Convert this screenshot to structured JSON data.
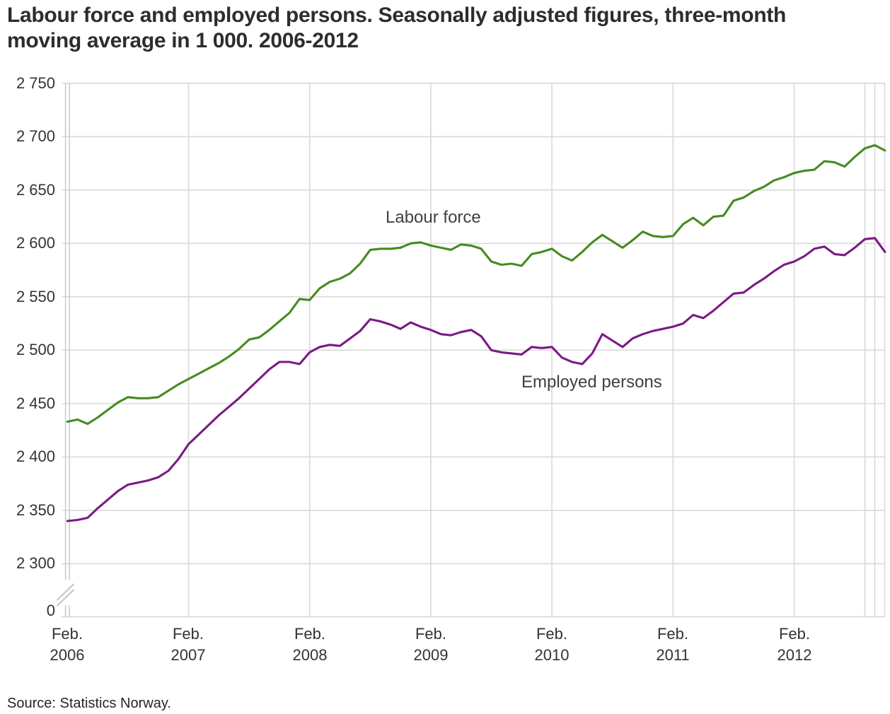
{
  "title": "Labour force and employed persons. Seasonally adjusted figures, three-month moving average in 1 000. 2006-2012",
  "source": "Source: Statistics Norway.",
  "colors": {
    "labour_force_line": "#458b1f",
    "employed_line": "#7a1a85",
    "gridline": "#d9d9d9",
    "axis": "#cbcbcb"
  },
  "chart_data": {
    "type": "line",
    "title": "Labour force and employed persons. Seasonally adjusted figures, three-month moving average in 1 000. 2006-2012",
    "xlabel": "",
    "ylabel": "",
    "grid": true,
    "legend_position": "inline-labels",
    "y_axis": {
      "broken_at_zero": true,
      "range_shown": [
        2300,
        2750
      ],
      "ticks": [
        {
          "value": 2750,
          "label": "2 750"
        },
        {
          "value": 2700,
          "label": "2 700"
        },
        {
          "value": 2650,
          "label": "2 650"
        },
        {
          "value": 2600,
          "label": "2 600"
        },
        {
          "value": 2550,
          "label": "2 550"
        },
        {
          "value": 2500,
          "label": "2 500"
        },
        {
          "value": 2450,
          "label": "2 450"
        },
        {
          "value": 2400,
          "label": "2 400"
        },
        {
          "value": 2350,
          "label": "2 350"
        },
        {
          "value": 2300,
          "label": "2 300"
        },
        {
          "value": 0,
          "label": "0"
        }
      ]
    },
    "x_axis": {
      "ticks": [
        {
          "month_index": 0,
          "line1": "Feb.",
          "line2": "2006"
        },
        {
          "month_index": 12,
          "line1": "Feb.",
          "line2": "2007"
        },
        {
          "month_index": 24,
          "line1": "Feb.",
          "line2": "2008"
        },
        {
          "month_index": 36,
          "line1": "Feb.",
          "line2": "2009"
        },
        {
          "month_index": 48,
          "line1": "Feb.",
          "line2": "2010"
        },
        {
          "month_index": 60,
          "line1": "Feb.",
          "line2": "2011"
        },
        {
          "month_index": 72,
          "line1": "Feb.",
          "line2": "2012"
        }
      ]
    },
    "months": [
      "2006-02",
      "2006-03",
      "2006-04",
      "2006-05",
      "2006-06",
      "2006-07",
      "2006-08",
      "2006-09",
      "2006-10",
      "2006-11",
      "2006-12",
      "2007-01",
      "2007-02",
      "2007-03",
      "2007-04",
      "2007-05",
      "2007-06",
      "2007-07",
      "2007-08",
      "2007-09",
      "2007-10",
      "2007-11",
      "2007-12",
      "2008-01",
      "2008-02",
      "2008-03",
      "2008-04",
      "2008-05",
      "2008-06",
      "2008-07",
      "2008-08",
      "2008-09",
      "2008-10",
      "2008-11",
      "2008-12",
      "2009-01",
      "2009-02",
      "2009-03",
      "2009-04",
      "2009-05",
      "2009-06",
      "2009-07",
      "2009-08",
      "2009-09",
      "2009-10",
      "2009-11",
      "2009-12",
      "2010-01",
      "2010-02",
      "2010-03",
      "2010-04",
      "2010-05",
      "2010-06",
      "2010-07",
      "2010-08",
      "2010-09",
      "2010-10",
      "2010-11",
      "2010-12",
      "2011-01",
      "2011-02",
      "2011-03",
      "2011-04",
      "2011-05",
      "2011-06",
      "2011-07",
      "2011-08",
      "2011-09",
      "2011-10",
      "2011-11",
      "2011-12",
      "2012-01",
      "2012-02",
      "2012-03",
      "2012-04",
      "2012-05",
      "2012-06",
      "2012-07",
      "2012-08",
      "2012-09",
      "2012-10",
      "2012-11"
    ],
    "series": [
      {
        "name": "Labour force",
        "color": "#458b1f",
        "values": [
          2433,
          2435,
          2431,
          2437,
          2444,
          2451,
          2456,
          2455,
          2455,
          2456,
          2462,
          2468,
          2473,
          2478,
          2483,
          2488,
          2494,
          2501,
          2510,
          2512,
          2519,
          2527,
          2535,
          2548,
          2547,
          2558,
          2564,
          2567,
          2572,
          2581,
          2594,
          2595,
          2595,
          2596,
          2600,
          2601,
          2598,
          2596,
          2594,
          2599,
          2598,
          2595,
          2583,
          2580,
          2581,
          2579,
          2590,
          2592,
          2595,
          2588,
          2584,
          2592,
          2601,
          2608,
          2602,
          2596,
          2603,
          2611,
          2607,
          2606,
          2607,
          2618,
          2624,
          2617,
          2625,
          2626,
          2640,
          2643,
          2649,
          2653,
          2659,
          2662,
          2666,
          2668,
          2669,
          2677,
          2676,
          2672,
          2681,
          2689,
          2692,
          2687
        ]
      },
      {
        "name": "Employed persons",
        "color": "#7a1a85",
        "values": [
          2340,
          2341,
          2343,
          2352,
          2360,
          2368,
          2374,
          2376,
          2378,
          2381,
          2387,
          2398,
          2412,
          2421,
          2430,
          2439,
          2447,
          2455,
          2464,
          2473,
          2482,
          2489,
          2489,
          2487,
          2498,
          2503,
          2505,
          2504,
          2511,
          2518,
          2529,
          2527,
          2524,
          2520,
          2526,
          2522,
          2519,
          2515,
          2514,
          2517,
          2519,
          2513,
          2500,
          2498,
          2497,
          2496,
          2503,
          2502,
          2503,
          2493,
          2489,
          2487,
          2497,
          2515,
          2509,
          2503,
          2511,
          2515,
          2518,
          2520,
          2522,
          2525,
          2533,
          2530,
          2537,
          2545,
          2553,
          2554,
          2561,
          2567,
          2574,
          2580,
          2583,
          2588,
          2595,
          2597,
          2590,
          2589,
          2596,
          2604,
          2605,
          2592
        ]
      }
    ]
  }
}
